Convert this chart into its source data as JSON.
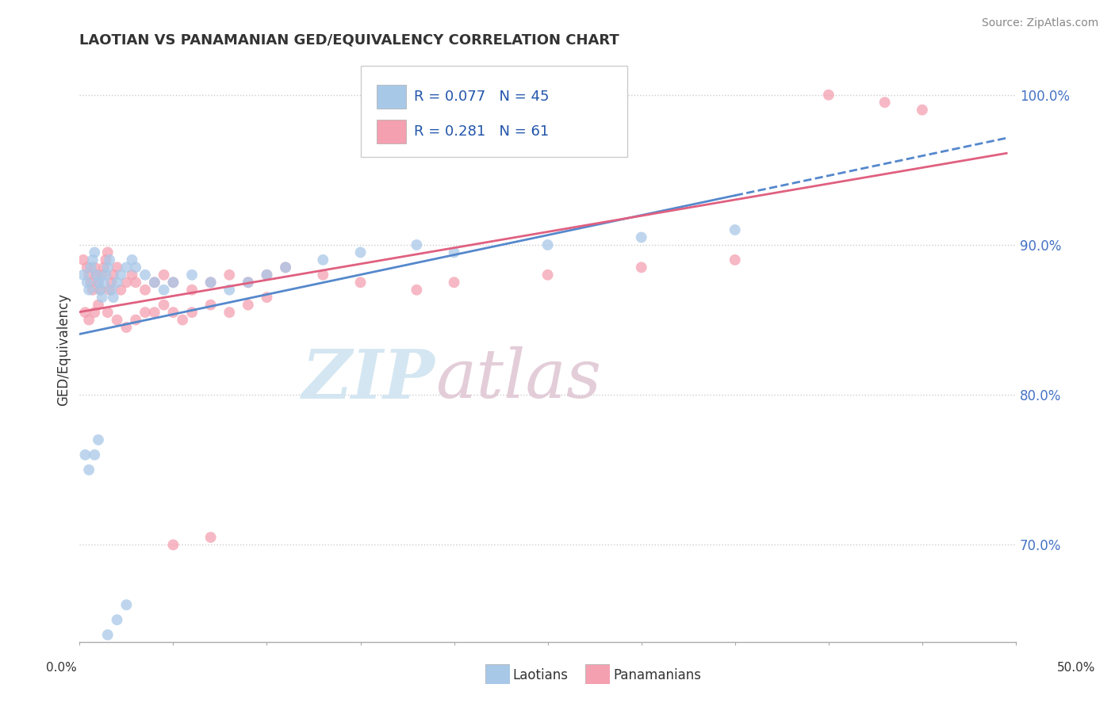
{
  "title": "LAOTIAN VS PANAMANIAN GED/EQUIVALENCY CORRELATION CHART",
  "source": "Source: ZipAtlas.com",
  "ylabel": "GED/Equivalency",
  "xmin": 0.0,
  "xmax": 0.5,
  "ymin": 0.635,
  "ymax": 1.025,
  "yticks": [
    0.7,
    0.8,
    0.9,
    1.0
  ],
  "ytick_labels": [
    "70.0%",
    "80.0%",
    "90.0%",
    "100.0%"
  ],
  "r_laotian": 0.077,
  "n_laotian": 45,
  "r_panamanian": 0.281,
  "n_panamanian": 61,
  "laotian_color": "#a8c8e8",
  "panamanian_color": "#f4a0b0",
  "trend_laotian_color": "#5588cc",
  "trend_panamanian_color": "#e06080",
  "lao_x": [
    0.002,
    0.004,
    0.005,
    0.006,
    0.007,
    0.008,
    0.009,
    0.01,
    0.011,
    0.012,
    0.013,
    0.014,
    0.015,
    0.016,
    0.017,
    0.018,
    0.02,
    0.022,
    0.025,
    0.028,
    0.03,
    0.035,
    0.04,
    0.045,
    0.05,
    0.06,
    0.07,
    0.08,
    0.09,
    0.1,
    0.11,
    0.13,
    0.15,
    0.18,
    0.2,
    0.25,
    0.3,
    0.35,
    0.003,
    0.005,
    0.008,
    0.01,
    0.015,
    0.02,
    0.025
  ],
  "lao_y": [
    0.88,
    0.875,
    0.87,
    0.885,
    0.89,
    0.895,
    0.88,
    0.875,
    0.87,
    0.865,
    0.875,
    0.88,
    0.885,
    0.89,
    0.87,
    0.865,
    0.875,
    0.88,
    0.885,
    0.89,
    0.885,
    0.88,
    0.875,
    0.87,
    0.875,
    0.88,
    0.875,
    0.87,
    0.875,
    0.88,
    0.885,
    0.89,
    0.895,
    0.9,
    0.895,
    0.9,
    0.905,
    0.91,
    0.76,
    0.75,
    0.76,
    0.77,
    0.64,
    0.65,
    0.66
  ],
  "pana_x": [
    0.002,
    0.004,
    0.005,
    0.006,
    0.007,
    0.008,
    0.009,
    0.01,
    0.011,
    0.012,
    0.013,
    0.014,
    0.015,
    0.016,
    0.017,
    0.018,
    0.02,
    0.022,
    0.025,
    0.028,
    0.03,
    0.035,
    0.04,
    0.045,
    0.05,
    0.06,
    0.07,
    0.08,
    0.09,
    0.1,
    0.11,
    0.13,
    0.15,
    0.18,
    0.2,
    0.25,
    0.3,
    0.35,
    0.003,
    0.005,
    0.008,
    0.01,
    0.015,
    0.02,
    0.025,
    0.03,
    0.035,
    0.04,
    0.045,
    0.05,
    0.055,
    0.06,
    0.07,
    0.08,
    0.09,
    0.1,
    0.4,
    0.43,
    0.45,
    0.05,
    0.07
  ],
  "pana_y": [
    0.89,
    0.885,
    0.88,
    0.875,
    0.87,
    0.885,
    0.88,
    0.875,
    0.87,
    0.88,
    0.885,
    0.89,
    0.895,
    0.87,
    0.875,
    0.88,
    0.885,
    0.87,
    0.875,
    0.88,
    0.875,
    0.87,
    0.875,
    0.88,
    0.875,
    0.87,
    0.875,
    0.88,
    0.875,
    0.88,
    0.885,
    0.88,
    0.875,
    0.87,
    0.875,
    0.88,
    0.885,
    0.89,
    0.855,
    0.85,
    0.855,
    0.86,
    0.855,
    0.85,
    0.845,
    0.85,
    0.855,
    0.855,
    0.86,
    0.855,
    0.85,
    0.855,
    0.86,
    0.855,
    0.86,
    0.865,
    1.0,
    0.995,
    0.99,
    0.7,
    0.705
  ]
}
